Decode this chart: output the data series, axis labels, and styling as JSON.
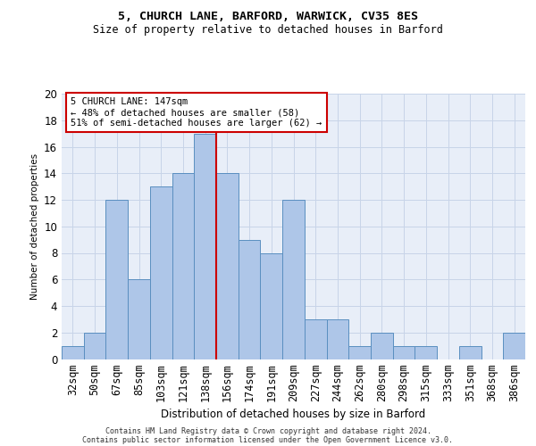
{
  "title1": "5, CHURCH LANE, BARFORD, WARWICK, CV35 8ES",
  "title2": "Size of property relative to detached houses in Barford",
  "xlabel": "Distribution of detached houses by size in Barford",
  "ylabel": "Number of detached properties",
  "categories": [
    "32sqm",
    "50sqm",
    "67sqm",
    "85sqm",
    "103sqm",
    "121sqm",
    "138sqm",
    "156sqm",
    "174sqm",
    "191sqm",
    "209sqm",
    "227sqm",
    "244sqm",
    "262sqm",
    "280sqm",
    "298sqm",
    "315sqm",
    "333sqm",
    "351sqm",
    "368sqm",
    "386sqm"
  ],
  "values": [
    1,
    2,
    12,
    6,
    13,
    14,
    17,
    14,
    9,
    8,
    12,
    3,
    3,
    1,
    2,
    1,
    1,
    0,
    1,
    0,
    2
  ],
  "bar_color": "#aec6e8",
  "bar_edge_color": "#5a8fc0",
  "annotation_line": "5 CHURCH LANE: 147sqm",
  "annotation_line2": "← 48% of detached houses are smaller (58)",
  "annotation_line3": "51% of semi-detached houses are larger (62) →",
  "annotation_box_color": "#ffffff",
  "annotation_box_edge": "#cc0000",
  "grid_color": "#c8d4e8",
  "bg_color": "#e8eef8",
  "footer1": "Contains HM Land Registry data © Crown copyright and database right 2024.",
  "footer2": "Contains public sector information licensed under the Open Government Licence v3.0.",
  "ylim": [
    0,
    20
  ],
  "yticks": [
    0,
    2,
    4,
    6,
    8,
    10,
    12,
    14,
    16,
    18,
    20
  ],
  "vline_x": 6.5
}
